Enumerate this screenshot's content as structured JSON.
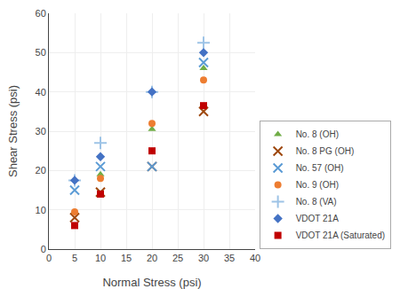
{
  "chart_data": {
    "type": "scatter",
    "x_label": "Normal Stress (psi)",
    "y_label": "Shear Stress (psi)",
    "xlim": [
      0,
      40
    ],
    "ylim": [
      0,
      60
    ],
    "xticks": [
      0,
      5,
      10,
      15,
      20,
      25,
      30,
      35,
      40
    ],
    "yticks": [
      0,
      10,
      20,
      30,
      40,
      50,
      60
    ],
    "grid": true,
    "legend": "lower right",
    "series": [
      {
        "name": "No. 8 (OH)",
        "color": "#70ad47",
        "marker": "triangle-up",
        "x": [
          5,
          10,
          20,
          30
        ],
        "values": [
          9.5,
          19,
          30.5,
          46
        ]
      },
      {
        "name": "No. 8 PG (OH)",
        "color": "#9e480e",
        "marker": "x",
        "x": [
          5,
          10,
          20,
          30
        ],
        "values": [
          8,
          14.5,
          21,
          35
        ]
      },
      {
        "name": "No. 57 (OH)",
        "color": "#5b9bd5",
        "marker": "x",
        "x": [
          5,
          10,
          20,
          30
        ],
        "values": [
          15,
          21,
          21,
          47.5
        ]
      },
      {
        "name": "No. 9 (OH)",
        "color": "#ed7d31",
        "marker": "circle",
        "x": [
          5,
          10,
          20,
          30
        ],
        "values": [
          9.5,
          18,
          32,
          43
        ]
      },
      {
        "name": "No. 8 (VA)",
        "color": "#9dc3e6",
        "marker": "plus",
        "x": [
          5,
          10,
          20,
          30
        ],
        "values": [
          17.5,
          27,
          40,
          52.5
        ]
      },
      {
        "name": "VDOT 21A",
        "color": "#4472c4",
        "marker": "diamond",
        "x": [
          5,
          10,
          20,
          30
        ],
        "values": [
          17.5,
          23.5,
          40,
          50
        ]
      },
      {
        "name": "VDOT 21A (Saturated)",
        "color": "#c00000",
        "marker": "square",
        "x": [
          5,
          10,
          20,
          30
        ],
        "values": [
          6,
          14,
          25,
          36.5
        ]
      }
    ]
  }
}
